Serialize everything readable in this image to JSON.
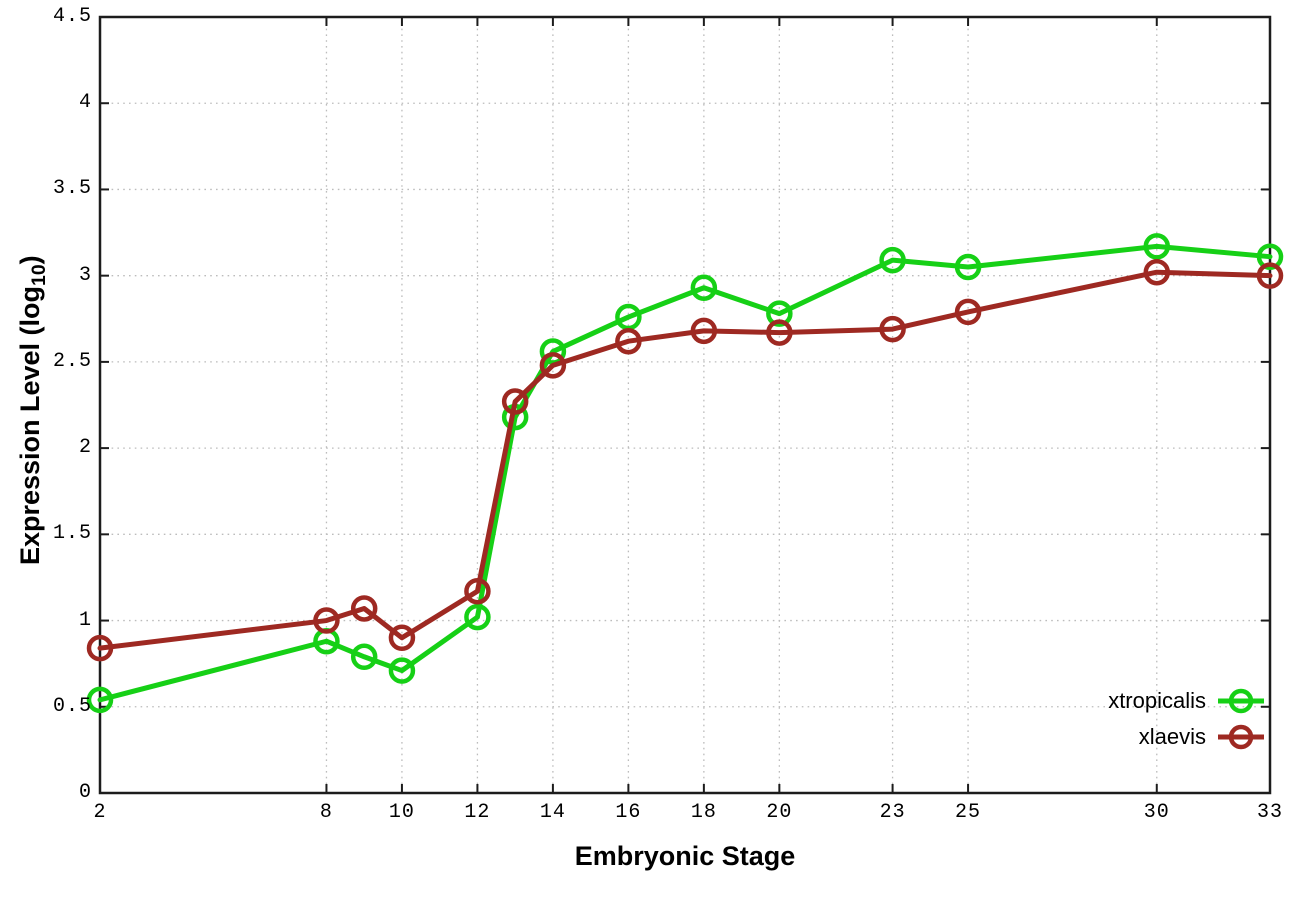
{
  "figure": {
    "background": "#ffffff",
    "border_color": "#1c1c1c",
    "grid_color": "#bcbcbc",
    "text_color": "#000000"
  },
  "chart_data": {
    "type": "line",
    "xlabel": "Embryonic Stage",
    "ylabel": "Expression Level (log10)",
    "ylabel_parts": {
      "main": "Expression Level (log",
      "sub": "10",
      "close": ")"
    },
    "xlim": [
      2,
      33
    ],
    "ylim": [
      0,
      4.5
    ],
    "grid": true,
    "legend_position": "inside-bottom-right",
    "xticks": [
      2,
      8,
      10,
      12,
      14,
      16,
      18,
      20,
      23,
      25,
      30,
      33
    ],
    "yticks": [
      0,
      0.5,
      1,
      1.5,
      2,
      2.5,
      3,
      3.5,
      4,
      4.5
    ],
    "series": [
      {
        "name": "xtropicalis",
        "color": "#16d016",
        "marker": "open-circle",
        "points": [
          [
            2,
            0.54
          ],
          [
            8,
            0.88
          ],
          [
            9,
            0.79
          ],
          [
            10,
            0.71
          ],
          [
            12,
            1.02
          ],
          [
            13,
            2.18
          ],
          [
            14,
            2.56
          ],
          [
            16,
            2.76
          ],
          [
            18,
            2.93
          ],
          [
            20,
            2.78
          ],
          [
            23,
            3.09
          ],
          [
            25,
            3.05
          ],
          [
            30,
            3.17
          ],
          [
            33,
            3.11
          ]
        ]
      },
      {
        "name": "xlaevis",
        "color": "#9e2922",
        "marker": "open-circle",
        "points": [
          [
            2,
            0.84
          ],
          [
            8,
            1.0
          ],
          [
            9,
            1.07
          ],
          [
            10,
            0.9
          ],
          [
            12,
            1.17
          ],
          [
            13,
            2.27
          ],
          [
            14,
            2.48
          ],
          [
            16,
            2.62
          ],
          [
            18,
            2.68
          ],
          [
            20,
            2.67
          ],
          [
            23,
            2.69
          ],
          [
            25,
            2.79
          ],
          [
            30,
            3.02
          ],
          [
            33,
            3.0
          ]
        ]
      }
    ]
  }
}
